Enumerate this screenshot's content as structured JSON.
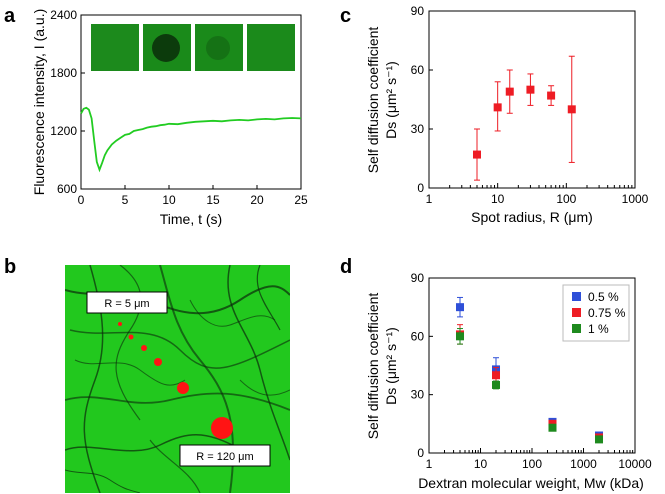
{
  "panel_labels": {
    "a": "a",
    "b": "b",
    "c": "c",
    "d": "d"
  },
  "chart_data": [
    {
      "panel": "a",
      "type": "line",
      "xlabel": "Time, t (s)",
      "ylabel": "Fluorescence intensity, I (a.u.)",
      "xlim": [
        0,
        25
      ],
      "ylim": [
        600,
        2400
      ],
      "xticks": [
        0,
        5,
        10,
        15,
        20,
        25
      ],
      "yticks": [
        600,
        1200,
        1800,
        2400
      ],
      "line_color": "#22cc22",
      "x": [
        0,
        0.3,
        0.6,
        0.9,
        1.2,
        1.5,
        1.8,
        2.1,
        2.4,
        2.7,
        3.0,
        3.5,
        4.0,
        4.5,
        5.0,
        5.5,
        6.0,
        6.5,
        7.0,
        7.5,
        8.0,
        8.5,
        9.0,
        9.5,
        10.0,
        11,
        12,
        13,
        14,
        15,
        16,
        17,
        18,
        19,
        20,
        21,
        22,
        23,
        24,
        25
      ],
      "y": [
        1380,
        1430,
        1440,
        1420,
        1330,
        1100,
        880,
        800,
        870,
        950,
        1000,
        1060,
        1100,
        1130,
        1160,
        1170,
        1200,
        1210,
        1220,
        1235,
        1245,
        1250,
        1260,
        1265,
        1275,
        1270,
        1285,
        1295,
        1300,
        1305,
        1300,
        1310,
        1315,
        1310,
        1320,
        1325,
        1320,
        1330,
        1335,
        1330
      ],
      "inset_image_count": 4
    },
    {
      "panel": "b",
      "type": "image",
      "labels": [
        "R = 5 μm",
        "R = 120 μm"
      ]
    },
    {
      "panel": "c",
      "type": "scatter",
      "xscale": "log",
      "xlabel": "Spot radius, R (μm)",
      "ylabel_line1": "Self diffusion coefficient",
      "ylabel_line2": "Ds (μm² s⁻¹)",
      "xlim": [
        1,
        1000
      ],
      "ylim": [
        0,
        90
      ],
      "xticks": [
        1,
        10,
        100,
        1000
      ],
      "xtick_labels": [
        "1",
        "10",
        "100",
        "1000"
      ],
      "yticks": [
        0,
        30,
        60,
        90
      ],
      "marker_color": "#ee1c24",
      "points": [
        {
          "x": 5,
          "y": 17,
          "err_lo": 4,
          "err_hi": 30
        },
        {
          "x": 10,
          "y": 41,
          "err_lo": 29,
          "err_hi": 54
        },
        {
          "x": 15,
          "y": 49,
          "err_lo": 38,
          "err_hi": 60
        },
        {
          "x": 30,
          "y": 50,
          "err_lo": 42,
          "err_hi": 58
        },
        {
          "x": 60,
          "y": 47,
          "err_lo": 42,
          "err_hi": 52
        },
        {
          "x": 120,
          "y": 40,
          "err_lo": 13,
          "err_hi": 67
        }
      ]
    },
    {
      "panel": "d",
      "type": "scatter",
      "xscale": "log",
      "xlabel": "Dextran molecular weight, Mw (kDa)",
      "ylabel_line1": "Self diffusion coefficient",
      "ylabel_line2": "Ds (μm² s⁻¹)",
      "xlim": [
        1,
        10000
      ],
      "ylim": [
        0,
        90
      ],
      "xticks": [
        1,
        10,
        100,
        1000,
        10000
      ],
      "xtick_labels": [
        "1",
        "10",
        "100",
        "1000",
        "10000"
      ],
      "yticks": [
        0,
        30,
        60,
        90
      ],
      "legend_position": "top-right",
      "series": [
        {
          "name": "0.5 %",
          "color": "#2e4fd8",
          "points": [
            {
              "x": 4,
              "y": 75,
              "err": 5
            },
            {
              "x": 20,
              "y": 43,
              "err": 6
            },
            {
              "x": 250,
              "y": 16,
              "err": 1.5
            },
            {
              "x": 2000,
              "y": 9,
              "err": 1
            }
          ]
        },
        {
          "name": "0.75 %",
          "color": "#ee1c24",
          "points": [
            {
              "x": 4,
              "y": 61,
              "err": 5
            },
            {
              "x": 20,
              "y": 40,
              "err": 4
            },
            {
              "x": 250,
              "y": 15,
              "err": 1.5
            },
            {
              "x": 2000,
              "y": 8,
              "err": 1
            }
          ]
        },
        {
          "name": "1 %",
          "color": "#1e8a1e",
          "points": [
            {
              "x": 4,
              "y": 60,
              "err": 4
            },
            {
              "x": 20,
              "y": 35,
              "err": 2
            },
            {
              "x": 250,
              "y": 13,
              "err": 1
            },
            {
              "x": 2000,
              "y": 7,
              "err": 1
            }
          ]
        }
      ]
    }
  ]
}
